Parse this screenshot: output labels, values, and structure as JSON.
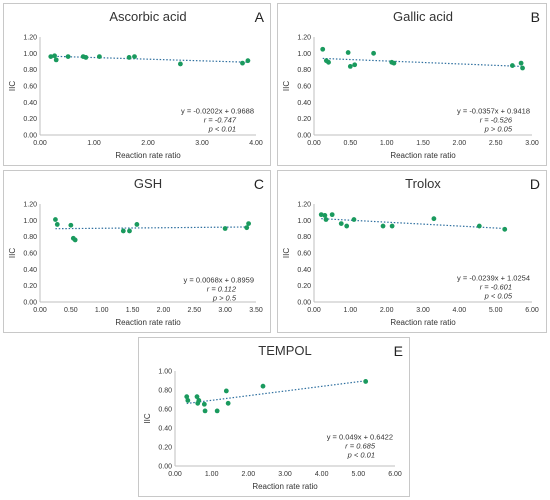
{
  "figure": {
    "point_color": "#1a9a5e",
    "trend_color": "#2e6f9f",
    "axis_color": "#bfbfbf",
    "grid": false
  },
  "chart_data": [
    {
      "id": "A",
      "letter": "A",
      "type": "scatter",
      "title": "Ascorbic acid",
      "xlabel": "Reaction rate ratio",
      "ylabel": "IIC",
      "xlim": [
        0,
        4
      ],
      "xticks": [
        "0.00",
        "1.00",
        "2.00",
        "3.00",
        "4.00"
      ],
      "ylim": [
        0,
        1.2
      ],
      "yticks": [
        "0.00",
        "0.20",
        "0.40",
        "0.60",
        "0.80",
        "1.00",
        "1.20"
      ],
      "points": [
        [
          0.2,
          0.96
        ],
        [
          0.27,
          0.97
        ],
        [
          0.3,
          0.92
        ],
        [
          0.52,
          0.96
        ],
        [
          0.8,
          0.96
        ],
        [
          0.85,
          0.95
        ],
        [
          1.1,
          0.96
        ],
        [
          1.65,
          0.95
        ],
        [
          1.75,
          0.96
        ],
        [
          2.6,
          0.87
        ],
        [
          3.75,
          0.88
        ],
        [
          3.85,
          0.91
        ]
      ],
      "trendline": {
        "slope": -0.0202,
        "intercept": 0.9688
      },
      "equation": "y = -0.0202x + 0.9688",
      "r_text": "r = -0.747",
      "p_text": "p < 0.01"
    },
    {
      "id": "B",
      "letter": "B",
      "type": "scatter",
      "title": "Gallic acid",
      "xlabel": "Reaction rate ratio",
      "ylabel": "IIC",
      "xlim": [
        0,
        3
      ],
      "xticks": [
        "0.00",
        "0.50",
        "1.00",
        "1.50",
        "2.00",
        "2.50",
        "3.00"
      ],
      "ylim": [
        0,
        1.2
      ],
      "yticks": [
        "0.00",
        "0.20",
        "0.40",
        "0.60",
        "0.80",
        "1.00",
        "1.20"
      ],
      "points": [
        [
          0.12,
          1.05
        ],
        [
          0.17,
          0.91
        ],
        [
          0.2,
          0.89
        ],
        [
          0.47,
          1.01
        ],
        [
          0.5,
          0.84
        ],
        [
          0.56,
          0.86
        ],
        [
          0.82,
          1.0
        ],
        [
          1.07,
          0.89
        ],
        [
          1.1,
          0.88
        ],
        [
          2.73,
          0.85
        ],
        [
          2.85,
          0.88
        ],
        [
          2.87,
          0.82
        ]
      ],
      "trendline": {
        "slope": -0.0357,
        "intercept": 0.9418
      },
      "equation": "y = -0.0357x + 0.9418",
      "r_text": "r = -0.526",
      "p_text": "p > 0.05"
    },
    {
      "id": "C",
      "letter": "C",
      "type": "scatter",
      "title": "GSH",
      "xlabel": "Reaction rate ratio",
      "ylabel": "IIC",
      "xlim": [
        0,
        3.5
      ],
      "xticks": [
        "0.00",
        "0.50",
        "1.00",
        "1.50",
        "2.00",
        "2.50",
        "3.00",
        "3.50"
      ],
      "ylim": [
        0,
        1.2
      ],
      "yticks": [
        "0.00",
        "0.20",
        "0.40",
        "0.60",
        "0.80",
        "1.00",
        "1.20"
      ],
      "points": [
        [
          0.25,
          1.01
        ],
        [
          0.28,
          0.95
        ],
        [
          0.5,
          0.94
        ],
        [
          0.54,
          0.78
        ],
        [
          0.57,
          0.76
        ],
        [
          1.35,
          0.87
        ],
        [
          1.45,
          0.87
        ],
        [
          1.57,
          0.95
        ],
        [
          3.0,
          0.9
        ],
        [
          3.35,
          0.91
        ],
        [
          3.38,
          0.96
        ]
      ],
      "trendline": {
        "slope": 0.0068,
        "intercept": 0.8959
      },
      "equation": "y = 0.0068x + 0.8959",
      "r_text": "r = 0.112",
      "p_text": "p > 0.5"
    },
    {
      "id": "D",
      "letter": "D",
      "type": "scatter",
      "title": "Trolox",
      "xlabel": "Reaction rate ratio",
      "ylabel": "IIC",
      "xlim": [
        0,
        6
      ],
      "xticks": [
        "0.00",
        "1.00",
        "2.00",
        "3.00",
        "4.00",
        "5.00",
        "6.00"
      ],
      "ylim": [
        0,
        1.2
      ],
      "yticks": [
        "0.00",
        "0.20",
        "0.40",
        "0.60",
        "0.80",
        "1.00",
        "1.20"
      ],
      "points": [
        [
          0.2,
          1.07
        ],
        [
          0.3,
          1.06
        ],
        [
          0.33,
          1.01
        ],
        [
          0.5,
          1.07
        ],
        [
          0.75,
          0.96
        ],
        [
          0.9,
          0.93
        ],
        [
          1.1,
          1.01
        ],
        [
          1.9,
          0.93
        ],
        [
          2.15,
          0.93
        ],
        [
          3.3,
          1.02
        ],
        [
          4.55,
          0.93
        ],
        [
          5.25,
          0.89
        ]
      ],
      "trendline": {
        "slope": -0.0239,
        "intercept": 1.0254
      },
      "equation": "y = -0.0239x + 1.0254",
      "r_text": "r = -0.601",
      "p_text": "p < 0.05"
    },
    {
      "id": "E",
      "letter": "E",
      "type": "scatter",
      "title": "TEMPOL",
      "xlabel": "Reaction rate ratio",
      "ylabel": "IIC",
      "xlim": [
        0,
        6
      ],
      "xticks": [
        "0.00",
        "1.00",
        "2.00",
        "3.00",
        "4.00",
        "5.00",
        "6.00"
      ],
      "ylim": [
        0,
        1.0
      ],
      "yticks": [
        "0.00",
        "0.20",
        "0.40",
        "0.60",
        "0.80",
        "1.00"
      ],
      "points": [
        [
          0.32,
          0.73
        ],
        [
          0.35,
          0.69
        ],
        [
          0.6,
          0.73
        ],
        [
          0.62,
          0.66
        ],
        [
          0.65,
          0.69
        ],
        [
          0.8,
          0.65
        ],
        [
          0.82,
          0.58
        ],
        [
          1.15,
          0.58
        ],
        [
          1.4,
          0.79
        ],
        [
          1.45,
          0.66
        ],
        [
          2.4,
          0.84
        ],
        [
          5.2,
          0.89
        ]
      ],
      "trendline": {
        "slope": 0.049,
        "intercept": 0.6422
      },
      "equation": "y = 0.049x + 0.6422",
      "r_text": "r = 0.685",
      "p_text": "p < 0.01"
    }
  ]
}
